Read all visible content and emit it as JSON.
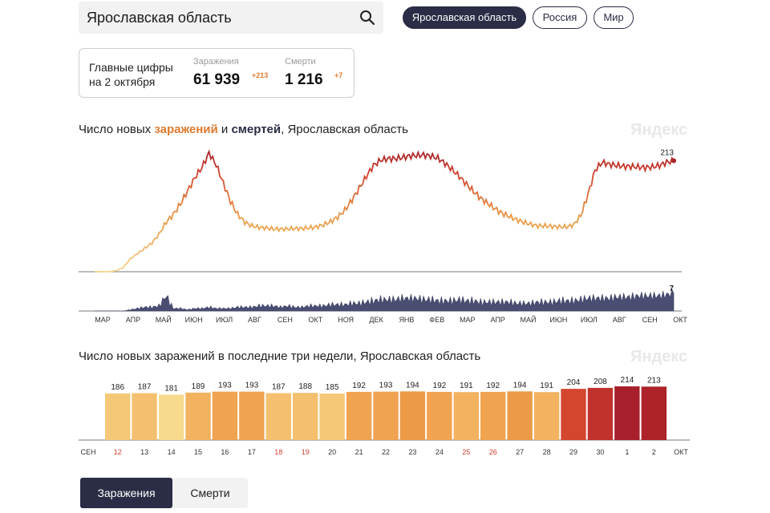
{
  "search": {
    "value": "Ярославская область"
  },
  "region_buttons": [
    {
      "label": "Ярославская область",
      "active": true
    },
    {
      "label": "Россия",
      "active": false
    },
    {
      "label": "Мир",
      "active": false
    }
  ],
  "summary": {
    "label_line1": "Главные цифры",
    "label_line2": "на 2 октября",
    "cases_caption": "Заражения",
    "cases_value": "61 939",
    "cases_delta": "+213",
    "deaths_caption": "Смерти",
    "deaths_value": "1 216",
    "deaths_delta": "+7"
  },
  "chart1_title": {
    "part1": "Число новых ",
    "part2": "заражений",
    "part3": " и ",
    "part4": "смертей",
    "part5": ", Ярославская область"
  },
  "brand": "Яндекс",
  "chart2_title": "Число новых заражений в последние три недели, Ярославская область",
  "tabs": {
    "cases": "Заражения",
    "deaths": "Смерти"
  },
  "colors": {
    "dark": "#2a2d45",
    "accent": "#e07a2e",
    "grid": "#e6e6e6"
  },
  "chart_data": [
    {
      "type": "line",
      "title": "Число новых заражений и смертей, Ярославская область",
      "x_labels": [
        "МАР",
        "АПР",
        "МАЙ",
        "ИЮН",
        "ИЮЛ",
        "АВГ",
        "СЕН",
        "ОКТ",
        "НОЯ",
        "ДЕК",
        "ЯНВ",
        "ФЕВ",
        "МАР",
        "АПР",
        "МАЙ",
        "ИЮН",
        "ИЮЛ",
        "АВГ",
        "СЕН",
        "ОКТ"
      ],
      "series": [
        {
          "name": "Заражения",
          "last_label": "213",
          "values": [
            0,
            0,
            0,
            2,
            8,
            25,
            35,
            45,
            55,
            72,
            95,
            110,
            130,
            155,
            180,
            200,
            228,
            205,
            170,
            135,
            110,
            95,
            88,
            85,
            84,
            82,
            82,
            82,
            83,
            83,
            84,
            86,
            90,
            96,
            105,
            118,
            138,
            160,
            183,
            204,
            214,
            217,
            217,
            219,
            222,
            223,
            224,
            222,
            218,
            208,
            196,
            183,
            168,
            154,
            141,
            131,
            121,
            112,
            106,
            100,
            95,
            91,
            88,
            88,
            87,
            86,
            86,
            90,
            108,
            148,
            195,
            210,
            206,
            204,
            202,
            202,
            201,
            200,
            201,
            204,
            210,
            213
          ]
        },
        {
          "name": "Смерти",
          "last_label": "7",
          "values": [
            0,
            0,
            0,
            0,
            0,
            0.5,
            1,
            1.5,
            1.5,
            2,
            6,
            1,
            1,
            0.5,
            1,
            1,
            1.5,
            1,
            1,
            1,
            1.5,
            1.5,
            1.5,
            2,
            2,
            2,
            1.5,
            2,
            1.5,
            1.5,
            2,
            2,
            2,
            2.5,
            2.5,
            2.5,
            3,
            3,
            3.5,
            4,
            4.5,
            4.5,
            4.5,
            5,
            5,
            5,
            4.5,
            4.5,
            4,
            4,
            4,
            4.5,
            4,
            4,
            3.5,
            3.5,
            3.5,
            3.5,
            3.5,
            3,
            3,
            3,
            3.5,
            3.5,
            3.5,
            4,
            4,
            4,
            4.5,
            5,
            5,
            5,
            5,
            5.5,
            5.5,
            5.5,
            6,
            6,
            6,
            6,
            6.5,
            7
          ]
        }
      ]
    },
    {
      "type": "bar",
      "title": "Число новых заражений в последние три недели, Ярославская область",
      "month_start": "СЕН",
      "month_end": "ОКТ",
      "categories": [
        "12",
        "13",
        "14",
        "15",
        "16",
        "17",
        "18",
        "19",
        "20",
        "21",
        "22",
        "23",
        "24",
        "25",
        "26",
        "27",
        "28",
        "29",
        "30",
        "1",
        "2"
      ],
      "values": [
        186,
        187,
        181,
        189,
        193,
        193,
        187,
        188,
        185,
        192,
        193,
        194,
        192,
        191,
        192,
        194,
        191,
        204,
        208,
        214,
        213
      ],
      "weekend": [
        true,
        false,
        false,
        false,
        false,
        false,
        true,
        true,
        false,
        false,
        false,
        false,
        false,
        true,
        true,
        false,
        false,
        false,
        false,
        false,
        false
      ]
    }
  ]
}
